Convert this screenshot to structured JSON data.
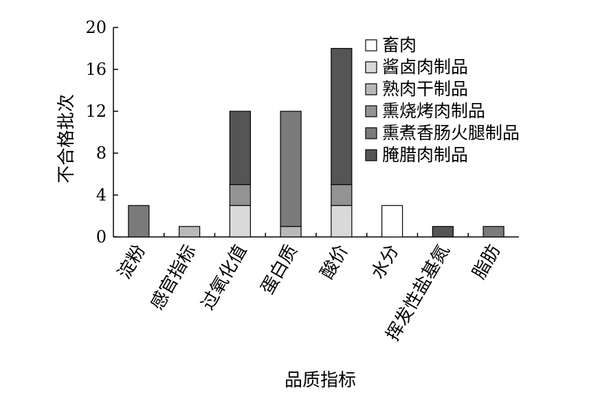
{
  "chart_data": {
    "type": "bar",
    "stacked": true,
    "title": "",
    "xlabel": "品质指标",
    "ylabel": "不合格批次",
    "ylim": [
      0,
      20
    ],
    "yticks": [
      "0",
      "4",
      "8",
      "12",
      "16",
      "20"
    ],
    "grid": false,
    "legend_position": "top-right",
    "categories": [
      "淀粉",
      "感官指标",
      "过氧化值",
      "蛋白质",
      "酸价",
      "水分",
      "挥发性盐基氮",
      "脂肪"
    ],
    "series": [
      {
        "name": "畜肉",
        "color": "#ffffff",
        "values": [
          0,
          0,
          0,
          0,
          0,
          3,
          0,
          0
        ]
      },
      {
        "name": "酱卤肉制品",
        "color": "#d9d9d9",
        "values": [
          0,
          0,
          3,
          0,
          3,
          0,
          0,
          0
        ]
      },
      {
        "name": "熟肉干制品",
        "color": "#b9b9b9",
        "values": [
          0,
          1,
          0,
          1,
          0,
          0,
          0,
          0
        ]
      },
      {
        "name": "熏烧烤肉制品",
        "color": "#939393",
        "values": [
          0,
          0,
          2,
          0,
          2,
          0,
          0,
          0
        ]
      },
      {
        "name": "熏煮香肠火腿制品",
        "color": "#7a7a7a",
        "values": [
          3,
          0,
          0,
          11,
          0,
          0,
          0,
          1
        ]
      },
      {
        "name": "腌腊肉制品",
        "color": "#555555",
        "values": [
          0,
          0,
          7,
          0,
          13,
          0,
          1,
          0
        ]
      }
    ]
  }
}
